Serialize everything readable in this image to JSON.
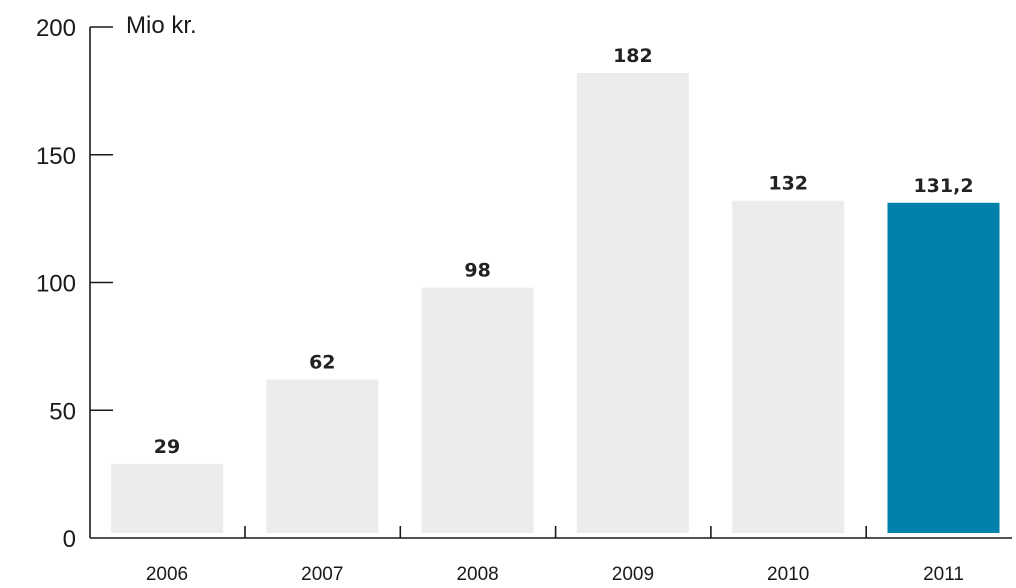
{
  "chart_data": {
    "type": "bar",
    "unit_label": "Mio kr.",
    "categories": [
      "2006",
      "2007",
      "2008",
      "2009",
      "2010",
      "2011"
    ],
    "values": [
      29,
      62,
      98,
      182,
      132,
      131.2
    ],
    "data_labels": [
      "29",
      "62",
      "98",
      "182",
      "132",
      "131,2"
    ],
    "y_ticks": [
      0,
      50,
      100,
      150,
      200
    ],
    "y_tick_labels": [
      "0",
      "50",
      "100",
      "150",
      "200"
    ],
    "ylim": [
      0,
      200
    ],
    "grid": false,
    "colors": {
      "default_bar": "#ececec",
      "highlight_bar": "#0081ab",
      "axis": "#1a1a1a"
    },
    "highlight_index": 5
  }
}
